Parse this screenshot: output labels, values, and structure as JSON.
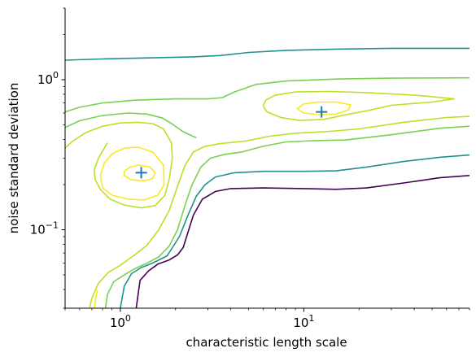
{
  "chart_data": {
    "type": "contour",
    "title": "",
    "xlabel": "characteristic length scale",
    "ylabel": "noise standard deviation",
    "xscale": "log",
    "yscale": "log",
    "xlim": [
      0.5,
      80
    ],
    "ylim": [
      0.03,
      3
    ],
    "x_ticks": [
      {
        "value": 1,
        "base": "10",
        "exp": "0"
      },
      {
        "value": 10,
        "base": "10",
        "exp": "1"
      }
    ],
    "y_ticks": [
      {
        "value": 0.1,
        "base": "10",
        "exp": "−1"
      },
      {
        "value": 1,
        "base": "10",
        "exp": "0"
      }
    ],
    "spines": {
      "top": false,
      "right": false
    },
    "grid": false,
    "markers": [
      {
        "name": "local-max-1",
        "x": 1.3,
        "y": 0.24,
        "symbol": "+",
        "color": "#1f77b4"
      },
      {
        "name": "local-max-2",
        "x": 12.5,
        "y": 0.61,
        "symbol": "+",
        "color": "#1f77b4"
      }
    ],
    "contours": [
      {
        "color": "#440154",
        "segments": [
          [
            [
              1.22,
              0.03
            ],
            [
              1.28,
              0.046
            ],
            [
              1.42,
              0.053
            ],
            [
              1.6,
              0.059
            ],
            [
              1.85,
              0.063
            ],
            [
              2.05,
              0.068
            ],
            [
              2.2,
              0.076
            ],
            [
              2.35,
              0.098
            ],
            [
              2.5,
              0.125
            ],
            [
              2.8,
              0.16
            ],
            [
              3.3,
              0.18
            ],
            [
              4.0,
              0.188
            ],
            [
              6.0,
              0.19
            ],
            [
              10,
              0.188
            ],
            [
              15,
              0.186
            ],
            [
              22,
              0.19
            ],
            [
              35,
              0.205
            ],
            [
              55,
              0.222
            ],
            [
              80,
              0.23
            ]
          ]
        ]
      },
      {
        "color": "#21918c",
        "segments": [
          [
            [
              1.0,
              0.03
            ],
            [
              1.05,
              0.042
            ],
            [
              1.15,
              0.051
            ],
            [
              1.3,
              0.056
            ],
            [
              1.5,
              0.06
            ],
            [
              1.8,
              0.067
            ],
            [
              2.1,
              0.09
            ],
            [
              2.35,
              0.127
            ],
            [
              2.6,
              0.168
            ],
            [
              2.9,
              0.2
            ],
            [
              3.3,
              0.225
            ],
            [
              4.2,
              0.24
            ],
            [
              6.0,
              0.245
            ],
            [
              10,
              0.245
            ],
            [
              15,
              0.247
            ],
            [
              22,
              0.262
            ],
            [
              35,
              0.285
            ],
            [
              55,
              0.304
            ],
            [
              80,
              0.315
            ]
          ],
          [
            [
              0.5,
              1.35
            ],
            [
              0.8,
              1.375
            ],
            [
              1.5,
              1.4
            ],
            [
              2.5,
              1.42
            ],
            [
              3.5,
              1.45
            ],
            [
              5,
              1.52
            ],
            [
              8,
              1.57
            ],
            [
              15,
              1.6
            ],
            [
              30,
              1.62
            ],
            [
              80,
              1.62
            ]
          ]
        ]
      },
      {
        "color": "#7ad151",
        "segments": [
          [
            [
              0.83,
              0.03
            ],
            [
              0.85,
              0.037
            ],
            [
              0.92,
              0.045
            ],
            [
              1.05,
              0.05
            ],
            [
              1.2,
              0.055
            ],
            [
              1.4,
              0.06
            ],
            [
              1.62,
              0.066
            ],
            [
              1.85,
              0.078
            ],
            [
              2.05,
              0.1
            ],
            [
              2.25,
              0.145
            ],
            [
              2.45,
              0.197
            ],
            [
              2.75,
              0.262
            ],
            [
              3.1,
              0.3
            ],
            [
              3.7,
              0.318
            ],
            [
              4.6,
              0.33
            ],
            [
              6,
              0.36
            ],
            [
              8,
              0.385
            ],
            [
              11,
              0.392
            ],
            [
              17,
              0.397
            ],
            [
              30,
              0.43
            ],
            [
              55,
              0.475
            ],
            [
              80,
              0.49
            ]
          ],
          [
            [
              0.5,
              0.61
            ],
            [
              0.6,
              0.655
            ],
            [
              0.8,
              0.7
            ],
            [
              1.2,
              0.73
            ],
            [
              2,
              0.745
            ],
            [
              3,
              0.745
            ],
            [
              3.6,
              0.76
            ],
            [
              4.2,
              0.83
            ],
            [
              5.5,
              0.93
            ],
            [
              8,
              0.98
            ],
            [
              15,
              1.01
            ],
            [
              30,
              1.025
            ],
            [
              80,
              1.03
            ]
          ],
          [
            [
              0.5,
              0.48
            ],
            [
              0.6,
              0.533
            ],
            [
              0.8,
              0.578
            ],
            [
              1.1,
              0.6
            ],
            [
              1.4,
              0.59
            ],
            [
              1.7,
              0.555
            ],
            [
              1.95,
              0.5
            ],
            [
              2.2,
              0.45
            ],
            [
              2.6,
              0.41
            ]
          ]
        ]
      },
      {
        "color": "#bddf26",
        "segments": [
          [
            [
              0.68,
              0.03
            ],
            [
              0.7,
              0.035
            ],
            [
              0.76,
              0.044
            ],
            [
              0.86,
              0.052
            ],
            [
              1.0,
              0.058
            ],
            [
              1.18,
              0.067
            ],
            [
              1.4,
              0.079
            ],
            [
              1.62,
              0.1
            ],
            [
              1.85,
              0.135
            ],
            [
              2.05,
              0.195
            ],
            [
              2.25,
              0.268
            ],
            [
              2.5,
              0.33
            ],
            [
              2.9,
              0.36
            ],
            [
              3.5,
              0.375
            ],
            [
              4.8,
              0.39
            ],
            [
              6.5,
              0.42
            ],
            [
              9,
              0.44
            ],
            [
              13,
              0.45
            ],
            [
              20,
              0.47
            ],
            [
              35,
              0.52
            ],
            [
              60,
              0.56
            ],
            [
              80,
              0.57
            ]
          ],
          [
            [
              0.5,
              0.35
            ],
            [
              0.55,
              0.39
            ],
            [
              0.65,
              0.445
            ],
            [
              0.8,
              0.49
            ],
            [
              1.0,
              0.515
            ],
            [
              1.25,
              0.52
            ],
            [
              1.5,
              0.51
            ],
            [
              1.72,
              0.47
            ],
            [
              1.9,
              0.38
            ],
            [
              1.92,
              0.3
            ],
            [
              1.85,
              0.22
            ],
            [
              1.75,
              0.17
            ],
            [
              1.55,
              0.145
            ],
            [
              1.3,
              0.14
            ],
            [
              1.05,
              0.146
            ],
            [
              0.88,
              0.16
            ],
            [
              0.78,
              0.185
            ],
            [
              0.73,
              0.215
            ],
            [
              0.72,
              0.25
            ],
            [
              0.76,
              0.3
            ],
            [
              0.85,
              0.38
            ]
          ],
          [
            [
              6.0,
              0.67
            ],
            [
              6.2,
              0.73
            ],
            [
              7,
              0.79
            ],
            [
              9,
              0.83
            ],
            [
              14,
              0.835
            ],
            [
              22,
              0.82
            ],
            [
              33,
              0.8
            ],
            [
              45,
              0.78
            ],
            [
              66,
              0.745
            ],
            [
              50,
              0.71
            ],
            [
              40,
              0.695
            ],
            [
              30,
              0.675
            ],
            [
              22,
              0.62
            ],
            [
              17,
              0.585
            ],
            [
              13,
              0.545
            ],
            [
              9.5,
              0.535
            ],
            [
              7.5,
              0.56
            ],
            [
              6.3,
              0.61
            ],
            [
              6.0,
              0.67
            ]
          ]
        ]
      },
      {
        "color": "#fde725",
        "segments": [
          [
            [
              0.72,
              0.03
            ],
            [
              0.75,
              0.04
            ]
          ],
          [
            [
              1.05,
              0.245
            ],
            [
              1.12,
              0.26
            ],
            [
              1.25,
              0.27
            ],
            [
              1.45,
              0.262
            ],
            [
              1.55,
              0.24
            ],
            [
              1.5,
              0.22
            ],
            [
              1.35,
              0.212
            ],
            [
              1.15,
              0.215
            ],
            [
              1.05,
              0.23
            ],
            [
              1.05,
              0.245
            ]
          ],
          [
            [
              0.78,
              0.23
            ],
            [
              0.82,
              0.28
            ],
            [
              0.9,
              0.32
            ],
            [
              1.05,
              0.35
            ],
            [
              1.25,
              0.355
            ],
            [
              1.5,
              0.33
            ],
            [
              1.72,
              0.27
            ],
            [
              1.73,
              0.2
            ],
            [
              1.6,
              0.17
            ],
            [
              1.35,
              0.158
            ],
            [
              1.1,
              0.16
            ],
            [
              0.9,
              0.17
            ],
            [
              0.8,
              0.19
            ],
            [
              0.78,
              0.23
            ]
          ],
          [
            [
              9.2,
              0.64
            ],
            [
              10,
              0.69
            ],
            [
              12,
              0.71
            ],
            [
              15,
              0.71
            ],
            [
              18,
              0.68
            ],
            [
              17.5,
              0.63
            ],
            [
              15,
              0.59
            ],
            [
              12,
              0.585
            ],
            [
              10,
              0.6
            ],
            [
              9.2,
              0.64
            ]
          ]
        ]
      }
    ]
  }
}
